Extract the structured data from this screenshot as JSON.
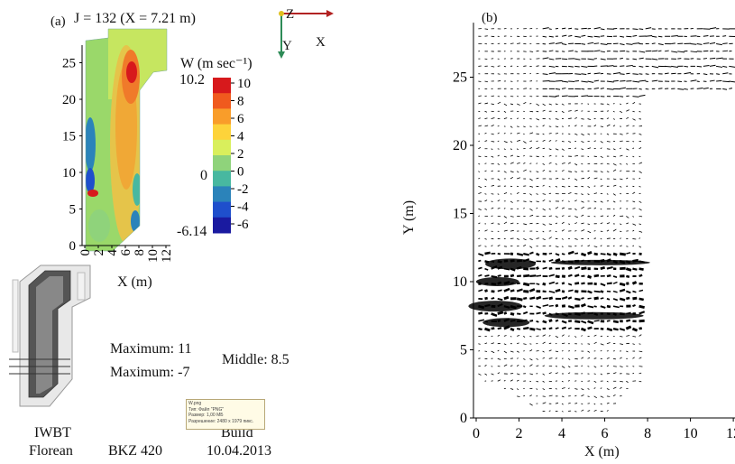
{
  "panel_a": {
    "label": "(a)",
    "title": "J = 132 (X = 7.21 m)",
    "axis_z": "Z",
    "axis_y": "Y",
    "axis_x": "X",
    "xlabel": "X (m)",
    "y_ticks": [
      "25",
      "20",
      "15",
      "10",
      "5",
      "0"
    ],
    "x_ticks": [
      "0",
      "2",
      "4",
      "6",
      "8",
      "10",
      "12"
    ]
  },
  "colorbar": {
    "title": "W (m sec⁻¹)",
    "max_value": "10.2",
    "mid_value": "0",
    "min_value": "-6.14",
    "ticks": [
      "10",
      "8",
      "6",
      "4",
      "2",
      "0",
      "-2",
      "-4",
      "-6"
    ],
    "colors": [
      "#d7191c",
      "#f05a1e",
      "#f99d2a",
      "#fdd33a",
      "#d9ef5c",
      "#8fd37b",
      "#48b8a0",
      "#2b83ba",
      "#1f4fcc",
      "#1a1aa0"
    ]
  },
  "stats": {
    "maximum_1": "Maximum: 11",
    "maximum_2": "Maximum: -7",
    "middle": "Middle: 8.5"
  },
  "footer": {
    "org_line1": "IWBT",
    "org_line2": "Florean",
    "boiler": "BKZ 420",
    "build_label": "Build",
    "build_date": "10.04.2013"
  },
  "tooltip": {
    "line1": "W.png",
    "line2": "Тип: Файл \"PNG\"",
    "line3": "Размер: 1,00 МБ",
    "line4": "Разрешение: 2480 x 1979 пикс."
  },
  "panel_b": {
    "label": "(b)",
    "xlabel": "X (m)",
    "ylabel": "Y (m)",
    "x_ticks": [
      "0",
      "2",
      "4",
      "6",
      "8",
      "10",
      "12"
    ],
    "y_ticks": [
      "0",
      "5",
      "10",
      "15",
      "20",
      "25"
    ]
  },
  "chart_data": {
    "type": "scatter",
    "xlabel": "X (m)",
    "ylabel": "Y (m)",
    "xlim": [
      0,
      12.5
    ],
    "ylim": [
      0,
      29
    ],
    "note_field": "vector field"
  }
}
